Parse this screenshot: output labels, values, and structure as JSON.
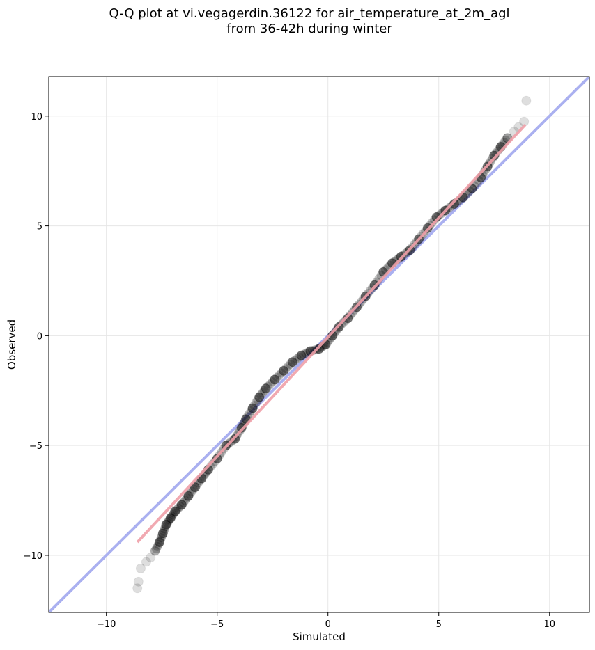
{
  "chart_data": {
    "type": "scatter",
    "title": "Q-Q plot at vi.vegagerdin.36122 for air_temperature_at_2m_agl\nfrom 36-42h during winter",
    "xlabel": "Simulated",
    "ylabel": "Observed",
    "xlim": [
      -12.6,
      11.8
    ],
    "ylim": [
      -12.6,
      11.8
    ],
    "xticks": [
      -10,
      -5,
      0,
      5,
      10
    ],
    "yticks": [
      -10,
      -5,
      0,
      5,
      10
    ],
    "xtick_labels": [
      "−10",
      "−5",
      "0",
      "5",
      "10"
    ],
    "ytick_labels": [
      "−10",
      "−5",
      "0",
      "5",
      "10"
    ],
    "grid": true,
    "colors": {
      "points": "#000000",
      "identity_line": "#aab0f0",
      "fit_line": "#f0a0a8"
    },
    "series": [
      {
        "kind": "reference",
        "points": [
          [
            -12.6,
            -12.6
          ],
          [
            11.8,
            11.8
          ]
        ]
      },
      {
        "kind": "fit",
        "points": [
          [
            -8.6,
            -9.4
          ],
          [
            8.9,
            9.6
          ]
        ]
      },
      {
        "kind": "quantiles",
        "points": [
          [
            -8.6,
            -11.5
          ],
          [
            -8.55,
            -11.2
          ],
          [
            -8.45,
            -10.6
          ],
          [
            -8.2,
            -10.3
          ],
          [
            -8.0,
            -10.1
          ],
          [
            -7.8,
            -9.8
          ],
          [
            -7.6,
            -9.4
          ],
          [
            -7.45,
            -9.0
          ],
          [
            -7.3,
            -8.6
          ],
          [
            -7.1,
            -8.3
          ],
          [
            -6.9,
            -8.0
          ],
          [
            -6.6,
            -7.7
          ],
          [
            -6.3,
            -7.3
          ],
          [
            -6.0,
            -6.9
          ],
          [
            -5.7,
            -6.5
          ],
          [
            -5.4,
            -6.1
          ],
          [
            -5.0,
            -5.6
          ],
          [
            -4.6,
            -5.0
          ],
          [
            -4.2,
            -4.7
          ],
          [
            -3.9,
            -4.2
          ],
          [
            -3.7,
            -3.8
          ],
          [
            -3.4,
            -3.3
          ],
          [
            -3.1,
            -2.8
          ],
          [
            -2.8,
            -2.4
          ],
          [
            -2.4,
            -2.0
          ],
          [
            -2.0,
            -1.6
          ],
          [
            -1.6,
            -1.2
          ],
          [
            -1.2,
            -0.9
          ],
          [
            -0.8,
            -0.7
          ],
          [
            -0.4,
            -0.6
          ],
          [
            -0.1,
            -0.4
          ],
          [
            0.2,
            0.0
          ],
          [
            0.5,
            0.4
          ],
          [
            0.9,
            0.8
          ],
          [
            1.3,
            1.3
          ],
          [
            1.7,
            1.8
          ],
          [
            2.1,
            2.3
          ],
          [
            2.5,
            2.9
          ],
          [
            2.9,
            3.3
          ],
          [
            3.3,
            3.6
          ],
          [
            3.7,
            3.9
          ],
          [
            4.1,
            4.4
          ],
          [
            4.5,
            4.9
          ],
          [
            4.9,
            5.4
          ],
          [
            5.3,
            5.7
          ],
          [
            5.7,
            6.0
          ],
          [
            6.1,
            6.3
          ],
          [
            6.5,
            6.7
          ],
          [
            6.9,
            7.2
          ],
          [
            7.2,
            7.7
          ],
          [
            7.5,
            8.2
          ],
          [
            7.8,
            8.6
          ],
          [
            8.1,
            9.0
          ],
          [
            8.4,
            9.3
          ],
          [
            8.6,
            9.5
          ],
          [
            8.85,
            9.75
          ],
          [
            8.95,
            10.7
          ]
        ]
      }
    ]
  }
}
